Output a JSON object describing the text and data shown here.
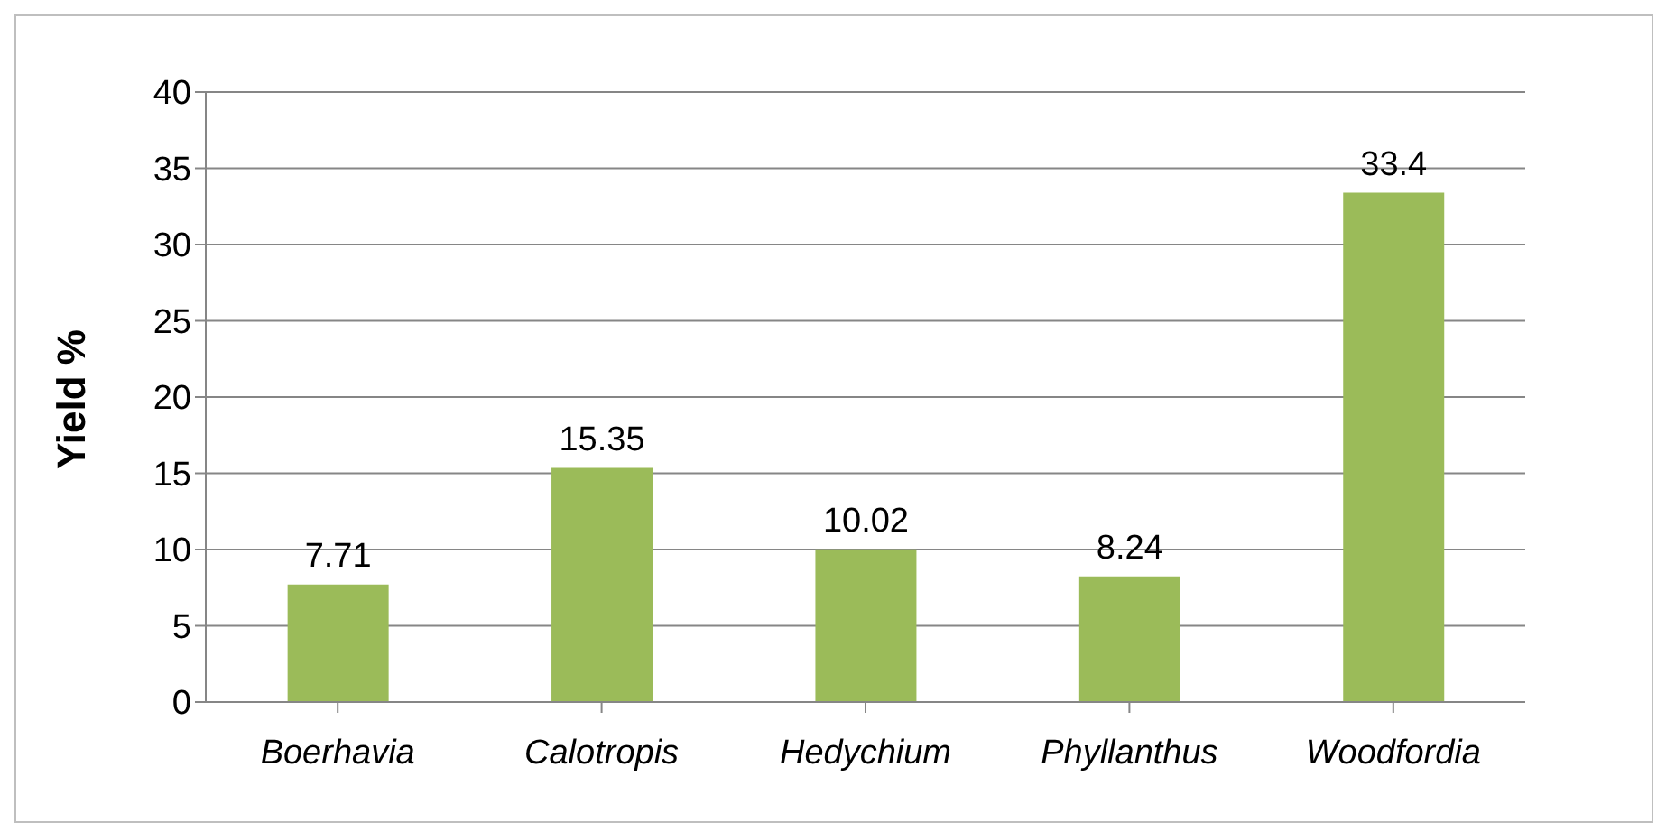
{
  "chart_data": {
    "type": "bar",
    "ylabel": "Yield %",
    "categories": [
      "Boerhavia",
      "Calotropis",
      "Hedychium",
      "Phyllanthus",
      "Woodfordia"
    ],
    "values": [
      7.71,
      15.35,
      10.02,
      8.24,
      33.4
    ],
    "color": "#9bbb59",
    "ylim": [
      0,
      40
    ],
    "yticks": [
      0,
      5,
      10,
      15,
      20,
      25,
      30,
      35,
      40
    ],
    "grid": "y",
    "data_labels": true
  }
}
